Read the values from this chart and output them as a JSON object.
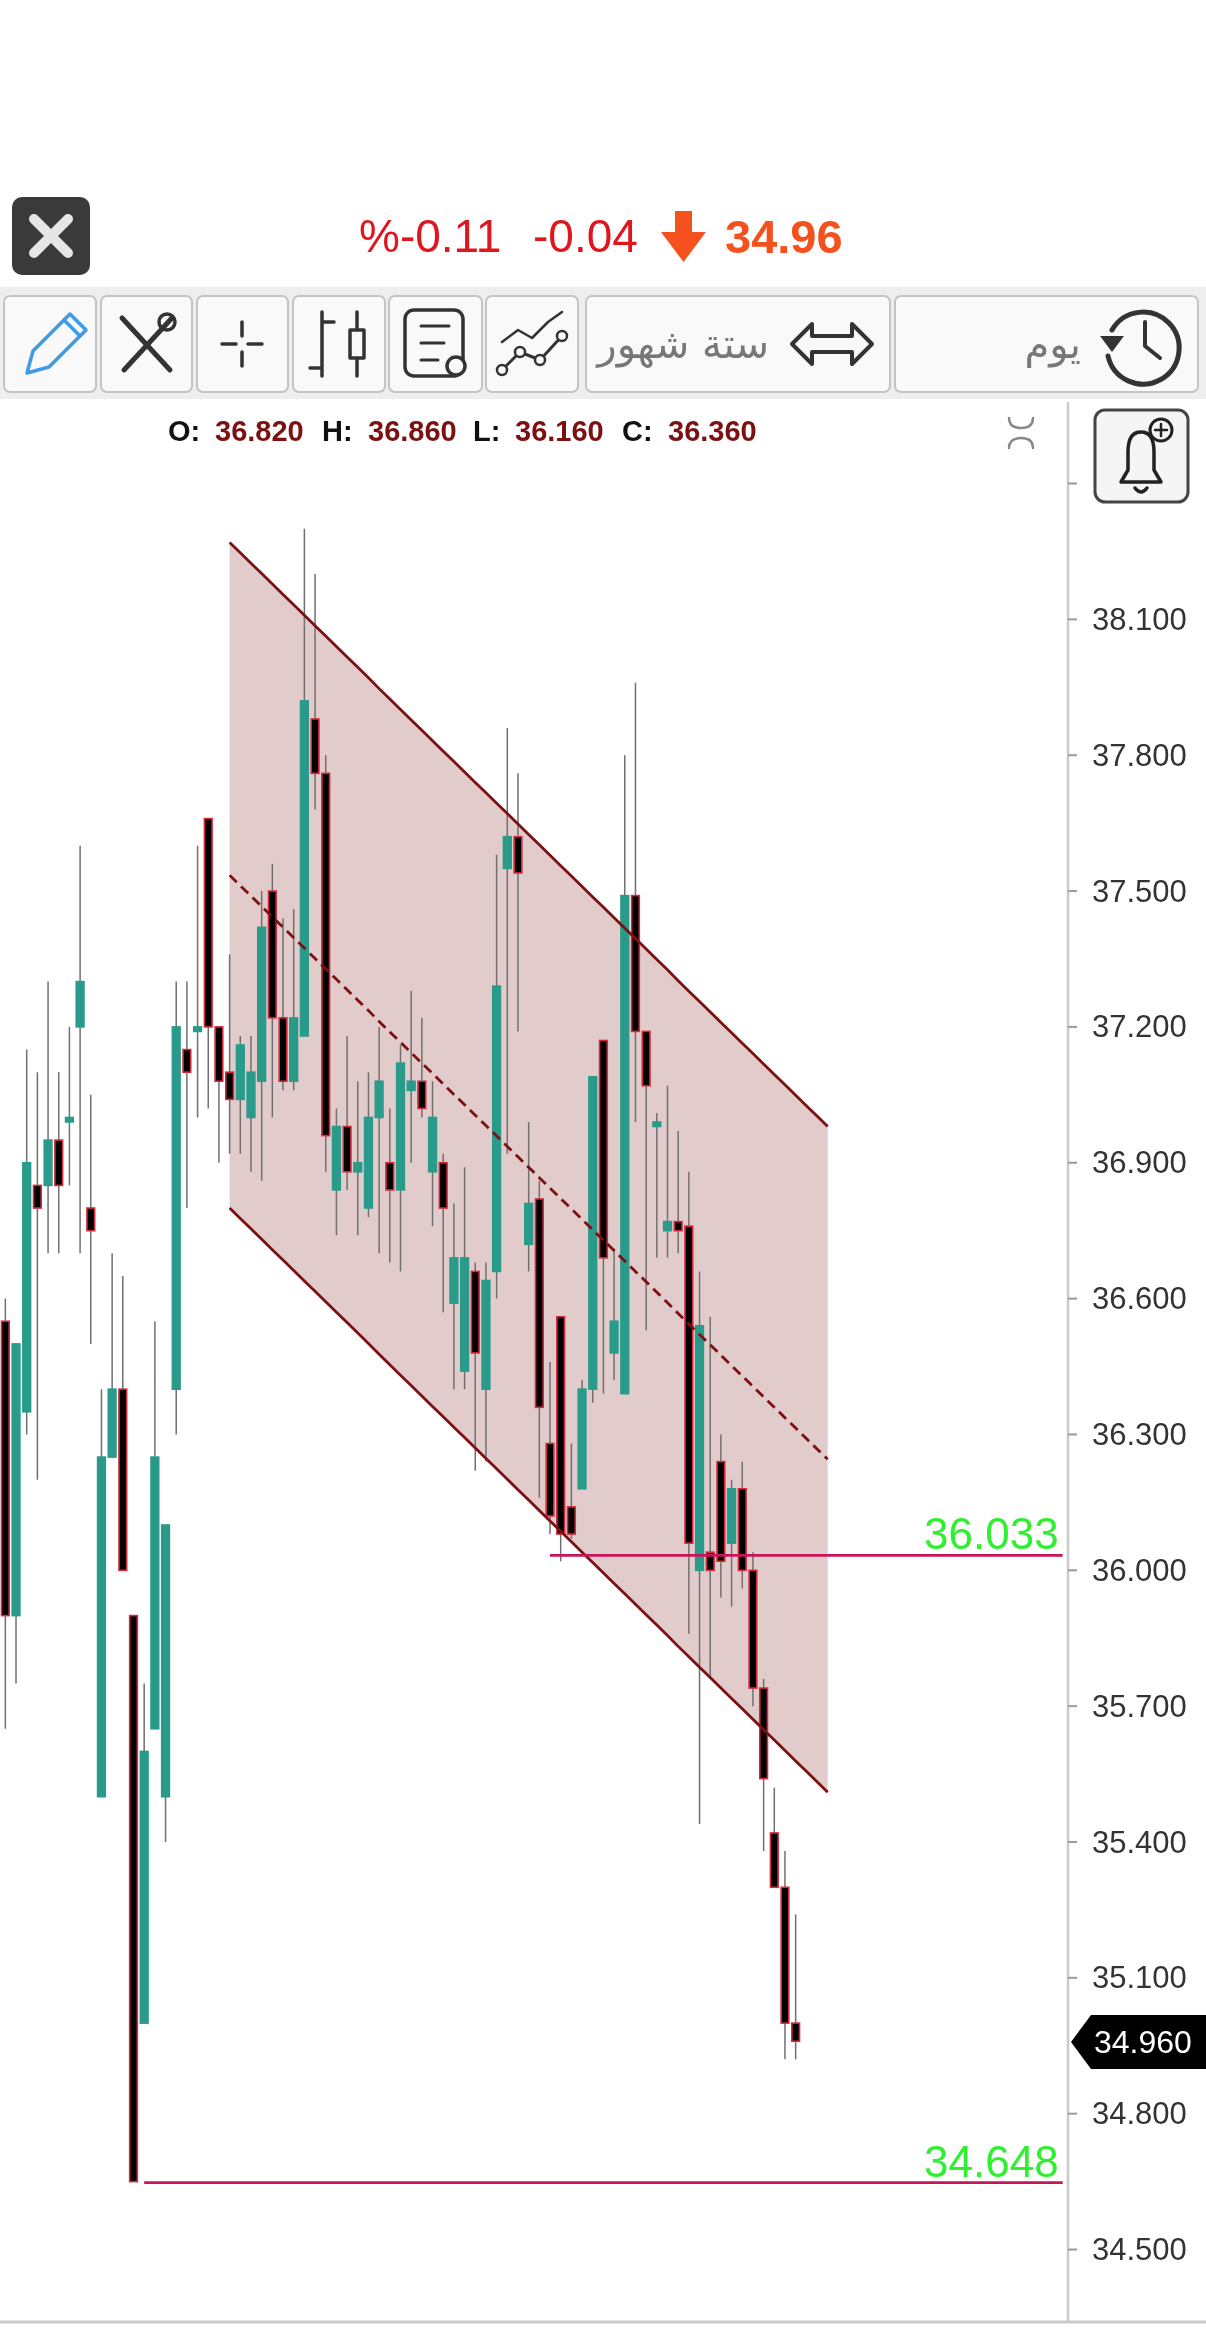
{
  "chart_data": {
    "type": "candlestick",
    "categories": [
      null,
      null,
      null,
      null,
      null,
      null,
      null,
      null,
      null,
      null,
      null,
      null,
      null,
      null,
      null,
      null,
      null,
      null,
      null,
      null,
      null,
      null,
      null,
      null,
      null,
      null,
      null,
      null,
      null,
      null,
      null,
      null,
      null,
      null,
      null,
      null,
      null,
      null,
      null,
      null,
      null,
      null,
      null,
      null,
      null,
      null,
      null,
      null,
      null,
      null,
      null,
      null,
      null,
      null,
      null,
      null,
      null,
      null,
      null,
      null,
      null,
      null,
      null,
      null,
      null,
      null,
      null,
      null,
      null,
      null,
      null,
      null,
      null,
      null,
      null,
      null,
      null,
      null,
      null,
      null,
      null,
      null,
      null,
      null,
      null,
      null,
      null,
      null,
      null,
      null,
      null,
      null,
      null,
      null,
      null,
      null,
      null,
      null,
      null,
      null
    ],
    "ohlc": [
      [
        36.55,
        36.6,
        35.65,
        35.9
      ],
      [
        35.9,
        36.5,
        35.75,
        36.5
      ],
      [
        36.35,
        37.15,
        36.3,
        36.9
      ],
      [
        36.85,
        37.1,
        36.2,
        36.8
      ],
      [
        36.85,
        37.3,
        36.7,
        36.95
      ],
      [
        36.95,
        37.1,
        36.7,
        36.85
      ],
      [
        36.99,
        37.2,
        36.85,
        37.0
      ],
      [
        37.2,
        37.6,
        36.7,
        37.3
      ],
      [
        36.8,
        37.05,
        36.5,
        36.75
      ],
      [
        35.5,
        36.4,
        35.5,
        36.25
      ],
      [
        36.25,
        36.7,
        36.25,
        36.4
      ],
      [
        36.4,
        36.65,
        36.0,
        36.0
      ],
      [
        35.9,
        35.9,
        34.65,
        34.65
      ],
      [
        35.0,
        35.75,
        35.0,
        35.6
      ],
      [
        35.65,
        36.55,
        35.65,
        36.25
      ],
      [
        35.5,
        36.1,
        35.4,
        36.1
      ],
      [
        36.4,
        37.3,
        36.3,
        37.2
      ],
      [
        37.15,
        37.3,
        36.8,
        37.1
      ],
      [
        37.19,
        37.6,
        37.0,
        37.2
      ],
      [
        37.66,
        37.66,
        37.02,
        37.2
      ],
      [
        37.2,
        37.2,
        36.9,
        37.08
      ],
      [
        37.1,
        37.36,
        36.92,
        37.04
      ],
      [
        37.04,
        37.18,
        36.92,
        37.16
      ],
      [
        37.0,
        37.18,
        36.88,
        37.1
      ],
      [
        37.08,
        37.5,
        36.86,
        37.42
      ],
      [
        37.5,
        37.56,
        37.0,
        37.22
      ],
      [
        37.22,
        37.44,
        37.06,
        37.08
      ],
      [
        37.08,
        37.46,
        37.06,
        37.22
      ],
      [
        37.18,
        38.3,
        37.18,
        37.92
      ],
      [
        37.88,
        38.2,
        37.68,
        37.76
      ],
      [
        37.76,
        37.8,
        36.88,
        36.96
      ],
      [
        36.84,
        37.02,
        36.74,
        36.98
      ],
      [
        36.98,
        37.18,
        36.84,
        36.88
      ],
      [
        36.88,
        37.08,
        36.74,
        36.9
      ],
      [
        36.8,
        37.1,
        36.78,
        37.0
      ],
      [
        37.0,
        37.2,
        36.7,
        37.08
      ],
      [
        36.9,
        37.02,
        36.68,
        36.84
      ],
      [
        36.84,
        37.16,
        36.66,
        37.12
      ],
      [
        37.06,
        37.28,
        36.9,
        37.08
      ],
      [
        37.08,
        37.22,
        37.0,
        37.02
      ],
      [
        36.88,
        37.08,
        36.76,
        37.0
      ],
      [
        36.9,
        36.92,
        36.57,
        36.8
      ],
      [
        36.59,
        36.81,
        36.4,
        36.69
      ],
      [
        36.44,
        36.89,
        36.4,
        36.69
      ],
      [
        36.66,
        36.68,
        36.22,
        36.48
      ],
      [
        36.4,
        36.68,
        36.24,
        36.64
      ],
      [
        36.66,
        37.58,
        36.6,
        37.29
      ],
      [
        37.55,
        37.86,
        36.92,
        37.62
      ],
      [
        37.62,
        37.76,
        37.19,
        37.54
      ],
      [
        36.72,
        36.99,
        36.66,
        36.81
      ],
      [
        36.82,
        36.86,
        36.16,
        36.36
      ],
      [
        36.28,
        36.46,
        36.08,
        36.12
      ],
      [
        36.56,
        36.56,
        36.02,
        36.08
      ],
      [
        36.14,
        36.28,
        36.07,
        36.08
      ],
      [
        36.18,
        36.42,
        36.18,
        36.4
      ],
      [
        36.4,
        37.09,
        36.37,
        37.09
      ],
      [
        37.17,
        37.17,
        36.39,
        36.69
      ],
      [
        36.48,
        36.71,
        36.42,
        36.55
      ],
      [
        36.39,
        37.8,
        36.39,
        37.49
      ],
      [
        37.49,
        37.96,
        36.99,
        37.19
      ],
      [
        37.19,
        37.19,
        36.53,
        37.07
      ],
      [
        36.98,
        37.01,
        36.69,
        36.99
      ],
      [
        36.75,
        37.07,
        36.69,
        36.77
      ],
      [
        36.77,
        36.97,
        36.7,
        36.75
      ],
      [
        36.76,
        36.88,
        35.86,
        36.06
      ],
      [
        36.0,
        36.66,
        35.44,
        36.54
      ],
      [
        36.04,
        36.56,
        35.76,
        36.0
      ],
      [
        36.24,
        36.3,
        35.94,
        36.02
      ],
      [
        36.06,
        36.2,
        35.92,
        36.18
      ],
      [
        36.18,
        36.24,
        35.96,
        36.0
      ],
      [
        36.0,
        36.04,
        35.7,
        35.74
      ],
      [
        35.74,
        35.76,
        35.38,
        35.54
      ],
      [
        35.42,
        35.52,
        35.3,
        35.3
      ],
      [
        35.3,
        35.38,
        34.92,
        35.0
      ],
      [
        35.0,
        35.24,
        34.92,
        34.96
      ],
      null,
      null,
      null,
      null,
      null,
      null,
      null,
      null,
      null,
      null,
      null,
      null,
      null,
      null,
      null,
      null,
      null,
      null,
      null,
      null,
      null,
      null,
      null,
      null,
      null
    ],
    "colors": [
      "#000000",
      "#2a9b8b",
      "#2a9b8b",
      "#000000",
      "#2a9b8b",
      "#000000",
      "#2a9b8b",
      "#2a9b8b",
      "#000000",
      "#2a9b8b",
      "#2a9b8b",
      "#000000",
      "#000000",
      "#2a9b8b",
      "#2a9b8b",
      "#2a9b8b",
      "#2a9b8b",
      "#000000",
      "#2a9b8b",
      "#000000",
      "#000000",
      "#000000",
      "#2a9b8b",
      "#2a9b8b",
      "#2a9b8b",
      "#000000",
      "#000000",
      "#2a9b8b",
      "#2a9b8b",
      "#000000",
      "#000000",
      "#2a9b8b",
      "#000000",
      "#2a9b8b",
      "#2a9b8b",
      "#2a9b8b",
      "#000000",
      "#2a9b8b",
      "#2a9b8b",
      "#000000",
      "#2a9b8b",
      "#000000",
      "#2a9b8b",
      "#2a9b8b",
      "#000000",
      "#2a9b8b",
      "#2a9b8b",
      "#2a9b8b",
      "#000000",
      "#2a9b8b",
      "#000000",
      "#000000",
      "#000000",
      "#000000",
      "#2a9b8b",
      "#2a9b8b",
      "#000000",
      "#2a9b8b",
      "#2a9b8b",
      "#000000",
      "#000000",
      "#2a9b8b",
      "#2a9b8b",
      "#000000",
      "#000000",
      "#2a9b8b",
      "#000000",
      "#000000",
      "#2a9b8b",
      "#000000",
      "#000000",
      "#000000",
      "#000000",
      "#000000",
      "#000000",
      null,
      null,
      null,
      null,
      null,
      null,
      null,
      null,
      null,
      null,
      null,
      null,
      null,
      null,
      null,
      null,
      null,
      null,
      null,
      null,
      null,
      null,
      null,
      null,
      null
    ],
    "ylim": [
      34.34,
      38.58
    ],
    "yticks": [
      {
        "value": 34.5,
        "label": "34.500"
      },
      {
        "value": 34.8,
        "label": "34.800"
      },
      {
        "value": 35.1,
        "label": "35.100"
      },
      {
        "value": 35.4,
        "label": "35.400"
      },
      {
        "value": 35.7,
        "label": "35.700"
      },
      {
        "value": 36.0,
        "label": "36.000"
      },
      {
        "value": 36.3,
        "label": "36.300"
      },
      {
        "value": 36.6,
        "label": "36.600"
      },
      {
        "value": 36.9,
        "label": "36.900"
      },
      {
        "value": 37.2,
        "label": "37.200"
      },
      {
        "value": 37.5,
        "label": "37.500"
      },
      {
        "value": 37.8,
        "label": "37.800"
      },
      {
        "value": 38.1,
        "label": "38.100"
      },
      {
        "value": 38.4,
        "label": null
      }
    ],
    "tick_labels": "y",
    "series": [
      {
        "type": "line",
        "color": "#7b1113",
        "line_style": "dashed",
        "values": [
          null,
          null,
          null,
          null,
          null,
          null,
          null,
          null,
          null,
          null,
          null,
          null,
          null,
          null,
          null,
          null,
          null,
          null,
          null,
          null,
          null,
          37.535,
          37.512,
          37.489,
          37.466,
          37.443,
          37.42,
          37.397,
          37.374,
          37.351,
          37.328,
          37.305,
          37.282,
          37.259,
          37.236,
          37.212,
          37.189,
          37.166,
          37.143,
          37.12,
          37.097,
          37.074,
          37.051,
          37.028,
          37.005,
          36.982,
          36.959,
          36.936,
          36.913,
          36.89,
          36.867,
          36.844,
          36.821,
          36.798,
          36.775,
          36.752,
          36.729,
          36.706,
          36.683,
          36.66,
          36.637,
          36.614,
          36.591,
          36.567,
          36.544,
          36.521,
          36.498,
          36.475,
          36.452,
          36.429,
          36.406,
          36.383,
          36.36,
          36.337,
          36.314,
          36.291,
          36.268,
          36.245,
          null,
          null,
          null,
          null,
          null,
          null,
          null,
          null,
          null,
          null,
          null,
          null,
          null,
          null,
          null,
          null,
          null,
          null,
          null,
          null,
          null,
          null
        ],
        "lower": [
          null,
          null,
          null,
          null,
          null,
          null,
          null,
          null,
          null,
          null,
          null,
          null,
          null,
          null,
          null,
          null,
          null,
          null,
          null,
          null,
          null,
          36.8,
          36.777,
          36.754,
          36.731,
          36.708,
          36.685,
          36.662,
          36.639,
          36.616,
          36.593,
          36.57,
          36.547,
          36.524,
          36.501,
          36.477,
          36.454,
          36.431,
          36.408,
          36.385,
          36.362,
          36.339,
          36.316,
          36.293,
          36.27,
          36.247,
          36.224,
          36.201,
          36.178,
          36.155,
          36.132,
          36.109,
          36.086,
          36.063,
          36.04,
          36.017,
          35.994,
          35.971,
          35.948,
          35.925,
          35.902,
          35.879,
          35.856,
          35.832,
          35.809,
          35.786,
          35.763,
          35.74,
          35.717,
          35.694,
          35.671,
          35.648,
          35.625,
          35.602,
          35.579,
          35.556,
          35.533,
          35.51,
          null,
          null,
          null,
          null,
          null,
          null,
          null,
          null,
          null,
          null,
          null,
          null,
          null,
          null,
          null,
          null,
          null,
          null,
          null,
          null,
          null,
          null
        ],
        "upper": [
          null,
          null,
          null,
          null,
          null,
          null,
          null,
          null,
          null,
          null,
          null,
          null,
          null,
          null,
          null,
          null,
          null,
          null,
          null,
          null,
          null,
          38.27,
          38.247,
          38.224,
          38.201,
          38.178,
          38.155,
          38.132,
          38.109,
          38.086,
          38.063,
          38.04,
          38.017,
          37.994,
          37.971,
          37.947,
          37.924,
          37.901,
          37.878,
          37.855,
          37.832,
          37.809,
          37.786,
          37.763,
          37.74,
          37.717,
          37.694,
          37.671,
          37.648,
          37.625,
          37.602,
          37.579,
          37.556,
          37.533,
          37.51,
          37.487,
          37.464,
          37.441,
          37.418,
          37.395,
          37.372,
          37.349,
          37.326,
          37.302,
          37.279,
          37.256,
          37.233,
          37.21,
          37.187,
          37.164,
          37.141,
          37.118,
          37.095,
          37.072,
          37.049,
          37.026,
          37.003,
          36.98,
          null,
          null,
          null,
          null,
          null,
          null,
          null,
          null,
          null,
          null,
          null,
          null,
          null,
          null,
          null,
          null,
          null,
          null,
          null,
          null,
          null,
          null
        ]
      },
      {
        "type": "line",
        "color": "#7b1113",
        "values": [
          null,
          null,
          null,
          null,
          null,
          null,
          null,
          null,
          null,
          null,
          null,
          null,
          null,
          null,
          null,
          null,
          null,
          null,
          null,
          null,
          null,
          38.27,
          38.247,
          38.224,
          38.201,
          38.178,
          38.155,
          38.132,
          38.109,
          38.086,
          38.063,
          38.04,
          38.017,
          37.994,
          37.971,
          37.947,
          37.924,
          37.901,
          37.878,
          37.855,
          37.832,
          37.809,
          37.786,
          37.763,
          37.74,
          37.717,
          37.694,
          37.671,
          37.648,
          37.625,
          37.602,
          37.579,
          37.556,
          37.533,
          37.51,
          37.487,
          37.464,
          37.441,
          37.418,
          37.395,
          37.372,
          37.349,
          37.326,
          37.302,
          37.279,
          37.256,
          37.233,
          37.21,
          37.187,
          37.164,
          37.141,
          37.118,
          37.095,
          37.072,
          37.049,
          37.026,
          37.003,
          36.98,
          null,
          null,
          null,
          null,
          null,
          null,
          null,
          null,
          null,
          null,
          null,
          null,
          null,
          null,
          null,
          null,
          null,
          null,
          null,
          null,
          null,
          null
        ]
      },
      {
        "type": "line",
        "color": "#7b1113",
        "values": [
          null,
          null,
          null,
          null,
          null,
          null,
          null,
          null,
          null,
          null,
          null,
          null,
          null,
          null,
          null,
          null,
          null,
          null,
          null,
          null,
          null,
          36.8,
          36.777,
          36.754,
          36.731,
          36.708,
          36.685,
          36.662,
          36.639,
          36.616,
          36.593,
          36.57,
          36.547,
          36.524,
          36.501,
          36.477,
          36.454,
          36.431,
          36.408,
          36.385,
          36.362,
          36.339,
          36.316,
          36.293,
          36.27,
          36.247,
          36.224,
          36.201,
          36.178,
          36.155,
          36.132,
          36.109,
          36.086,
          36.063,
          36.04,
          36.017,
          35.994,
          35.971,
          35.948,
          35.925,
          35.902,
          35.879,
          35.856,
          35.832,
          35.809,
          35.786,
          35.763,
          35.74,
          35.717,
          35.694,
          35.671,
          35.648,
          35.625,
          35.602,
          35.579,
          35.556,
          35.533,
          35.51,
          null,
          null,
          null,
          null,
          null,
          null,
          null,
          null,
          null,
          null,
          null,
          null,
          null,
          null,
          null,
          null,
          null,
          null,
          null,
          null,
          null,
          null
        ]
      },
      {
        "type": "line",
        "color": "#c8145a",
        "values": [
          null,
          null,
          null,
          null,
          null,
          null,
          null,
          null,
          null,
          null,
          null,
          null,
          null,
          null,
          null,
          null,
          null,
          null,
          null,
          null,
          null,
          null,
          null,
          null,
          null,
          null,
          null,
          null,
          null,
          null,
          null,
          null,
          null,
          null,
          null,
          null,
          null,
          null,
          null,
          null,
          null,
          null,
          null,
          null,
          null,
          null,
          null,
          null,
          null,
          null,
          null,
          36.033,
          36.033,
          36.033,
          36.033,
          36.033,
          36.033,
          36.033,
          36.033,
          36.033,
          36.033,
          36.033,
          36.033,
          36.033,
          36.033,
          36.033,
          36.033,
          36.033,
          36.033,
          36.033,
          36.033,
          36.033,
          36.033,
          36.033,
          36.033,
          36.033,
          36.033,
          36.033,
          36.033,
          36.033,
          36.033,
          36.033,
          36.033,
          36.033,
          36.033,
          36.033,
          36.033,
          36.033,
          36.033,
          36.033,
          36.033,
          36.033,
          36.033,
          36.033,
          36.033,
          36.033,
          36.033,
          36.033,
          36.033,
          36.033
        ],
        "value_labels": [
          null,
          null,
          null,
          null,
          null,
          null,
          null,
          null,
          null,
          null,
          null,
          null,
          null,
          null,
          null,
          null,
          null,
          null,
          null,
          null,
          null,
          null,
          null,
          null,
          null,
          null,
          null,
          null,
          null,
          null,
          null,
          null,
          null,
          null,
          null,
          null,
          null,
          null,
          null,
          null,
          null,
          null,
          null,
          null,
          null,
          null,
          null,
          null,
          null,
          null,
          null,
          null,
          null,
          null,
          null,
          null,
          null,
          null,
          null,
          null,
          null,
          null,
          null,
          null,
          null,
          null,
          null,
          null,
          null,
          null,
          null,
          null,
          null,
          null,
          null,
          null,
          null,
          null,
          null,
          null,
          null,
          null,
          null,
          null,
          null,
          null,
          null,
          null,
          null,
          null,
          null,
          null,
          null,
          null,
          null,
          null,
          null,
          null,
          null,
          "36.033"
        ]
      },
      {
        "type": "line",
        "color": "#c8145a",
        "values": [
          null,
          null,
          null,
          null,
          null,
          null,
          null,
          null,
          null,
          null,
          null,
          null,
          null,
          34.648,
          34.648,
          34.648,
          34.648,
          34.648,
          34.648,
          34.648,
          34.648,
          34.648,
          34.648,
          34.648,
          34.648,
          34.648,
          34.648,
          34.648,
          34.648,
          34.648,
          34.648,
          34.648,
          34.648,
          34.648,
          34.648,
          34.648,
          34.648,
          34.648,
          34.648,
          34.648,
          34.648,
          34.648,
          34.648,
          34.648,
          34.648,
          34.648,
          34.648,
          34.648,
          34.648,
          34.648,
          34.648,
          34.648,
          34.648,
          34.648,
          34.648,
          34.648,
          34.648,
          34.648,
          34.648,
          34.648,
          34.648,
          34.648,
          34.648,
          34.648,
          34.648,
          34.648,
          34.648,
          34.648,
          34.648,
          34.648,
          34.648,
          34.648,
          34.648,
          34.648,
          34.648,
          34.648,
          34.648,
          34.648,
          34.648,
          34.648,
          34.648,
          34.648,
          34.648,
          34.648,
          34.648,
          34.648,
          34.648,
          34.648,
          34.648,
          34.648,
          34.648,
          34.648,
          34.648,
          34.648,
          34.648,
          34.648,
          34.648,
          34.648,
          34.648,
          34.648
        ],
        "value_labels": [
          null,
          null,
          null,
          null,
          null,
          null,
          null,
          null,
          null,
          null,
          null,
          null,
          null,
          null,
          null,
          null,
          null,
          null,
          null,
          null,
          null,
          null,
          null,
          null,
          null,
          null,
          null,
          null,
          null,
          null,
          null,
          null,
          null,
          null,
          null,
          null,
          null,
          null,
          null,
          null,
          null,
          null,
          null,
          null,
          null,
          null,
          null,
          null,
          null,
          null,
          null,
          null,
          null,
          null,
          null,
          null,
          null,
          null,
          null,
          null,
          null,
          null,
          null,
          null,
          null,
          null,
          null,
          null,
          null,
          null,
          null,
          null,
          null,
          null,
          null,
          null,
          null,
          null,
          null,
          null,
          null,
          null,
          null,
          null,
          null,
          null,
          null,
          null,
          null,
          null,
          null,
          null,
          null,
          null,
          null,
          null,
          null,
          null,
          null,
          "34.648"
        ]
      }
    ],
    "annotations": [
      "%-0.11",
      "-0.04",
      "34.96",
      "ستة شهور",
      "يوم",
      "O:",
      "36.820",
      "H:",
      "36.860",
      "L:",
      "36.160",
      "C:",
      "36.360",
      "34.960"
    ]
  }
}
